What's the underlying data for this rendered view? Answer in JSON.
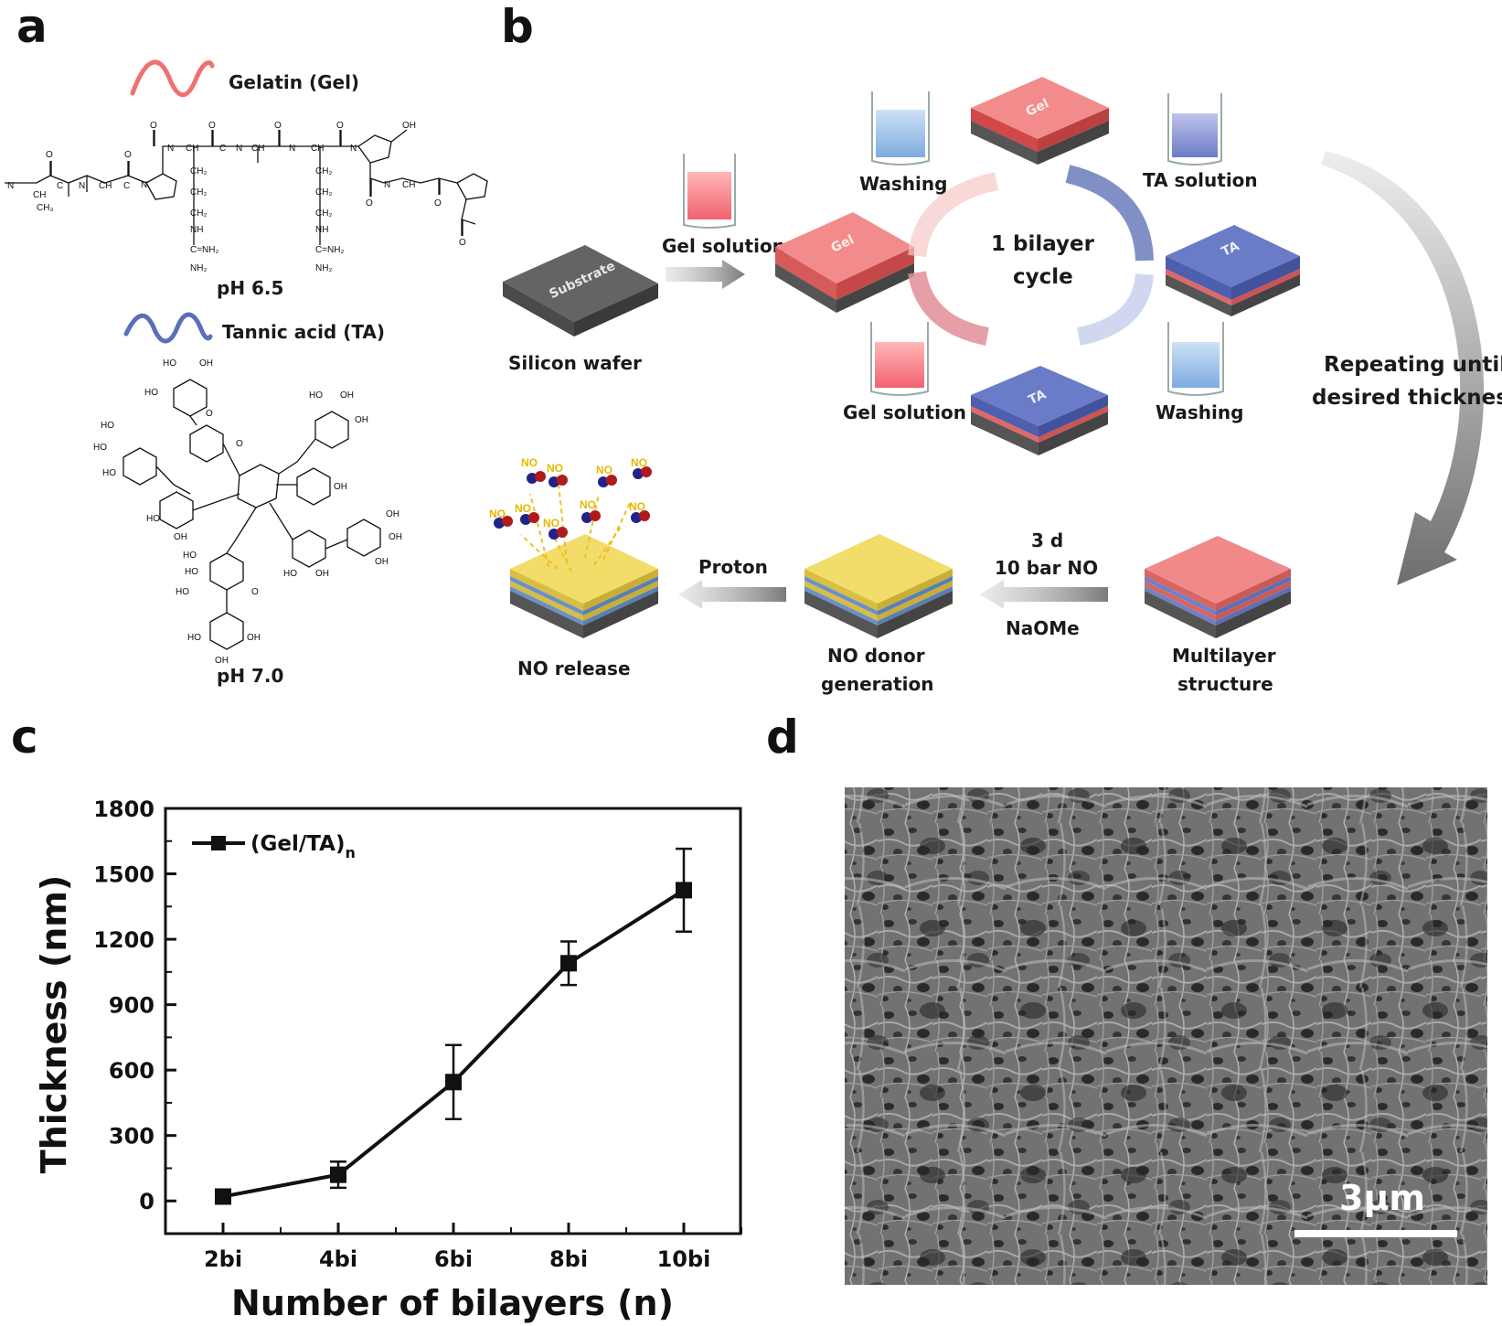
{
  "panels": {
    "a": "a",
    "b": "b",
    "c": "c",
    "d": "d"
  },
  "panel_a": {
    "gel_legend": "Gelatin (Gel)",
    "ta_legend": "Tannic acid (TA)",
    "gel_ph": "pH 6.5",
    "ta_ph": "pH 7.0",
    "gel_color": "#f07070",
    "ta_color": "#5a6fb8"
  },
  "panel_b": {
    "substrate_block": "Substrate",
    "silicon_wafer": "Silicon wafer",
    "gel_solution_top": "Gel solution",
    "washing_top": "Washing",
    "ta_solution": "TA solution",
    "gel_solution_bottom": "Gel solution",
    "washing_bottom": "Washing",
    "cycle_line1": "1 bilayer",
    "cycle_line2": "cycle",
    "repeat_line1": "Repeating until",
    "repeat_line2": "desired thickness",
    "gel_block": "Gel",
    "ta_block": "TA",
    "multilayer_line1": "Multilayer",
    "multilayer_line2": "structure",
    "cond_line1": "3 d",
    "cond_line2": "10 bar NO",
    "cond_line3": "NaOMe",
    "donor_line1": "NO donor",
    "donor_line2": "generation",
    "proton": "Proton",
    "no_release": "NO release",
    "no_molecule": "NO"
  },
  "chart_data": {
    "type": "line",
    "categories": [
      "2bi",
      "4bi",
      "6bi",
      "8bi",
      "10bi"
    ],
    "series": [
      {
        "name": "(Gel/TA)",
        "name_subscript": "n",
        "values": [
          20,
          120,
          545,
          1090,
          1425
        ],
        "error": [
          20,
          60,
          170,
          100,
          190
        ]
      }
    ],
    "xlabel": "Number of bilayers (n)",
    "ylabel": "Thickness (nm)",
    "ylim": [
      -150,
      1800
    ],
    "yticks": [
      0,
      300,
      600,
      900,
      1200,
      1500,
      1800
    ],
    "grid": false,
    "legend_position": "top-left"
  },
  "panel_d": {
    "scale_bar": "3μm"
  }
}
